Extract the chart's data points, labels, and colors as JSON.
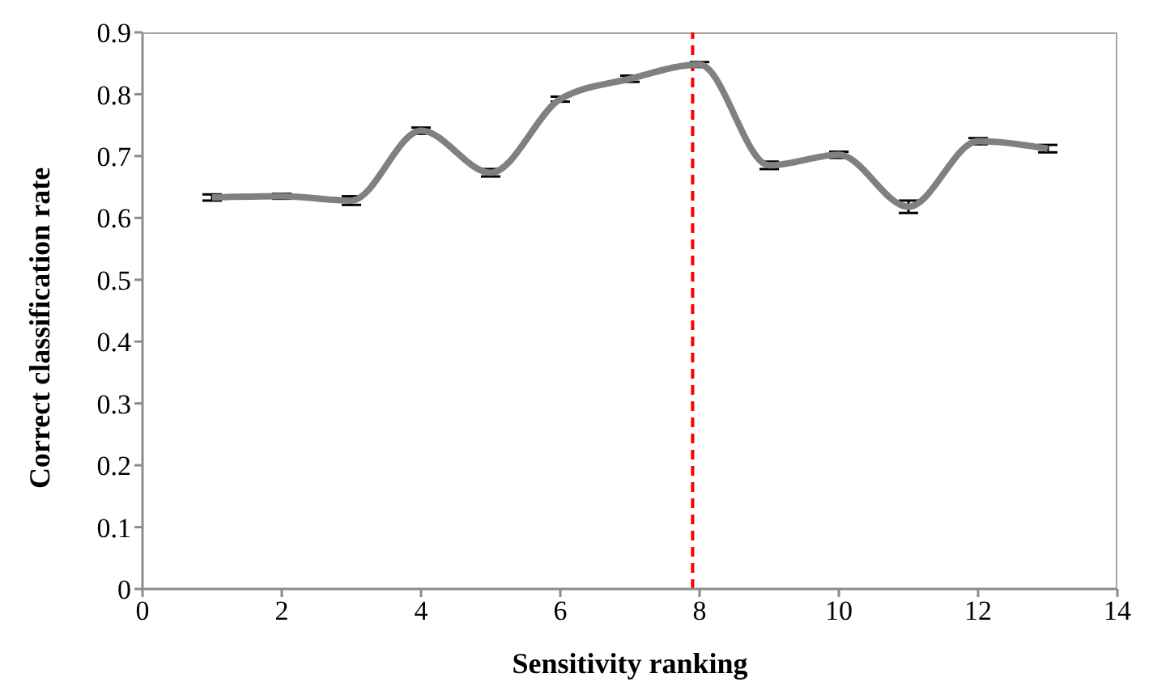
{
  "chart_data": {
    "type": "line",
    "xlabel": "Sensitivity ranking",
    "ylabel": "Correct classification rate",
    "x": [
      1,
      2,
      3,
      4,
      5,
      6,
      7,
      8,
      9,
      10,
      11,
      12,
      13
    ],
    "series": [
      {
        "color": "#808080",
        "values": [
          0.633,
          0.635,
          0.628,
          0.741,
          0.673,
          0.792,
          0.825,
          0.848,
          0.685,
          0.702,
          0.618,
          0.724,
          0.712
        ],
        "errors": [
          0.005,
          0.004,
          0.007,
          0.005,
          0.006,
          0.004,
          0.005,
          0.004,
          0.006,
          0.005,
          0.01,
          0.005,
          0.006
        ]
      }
    ],
    "xlim": [
      0,
      14
    ],
    "xticks": [
      0,
      2,
      4,
      6,
      8,
      10,
      12,
      14
    ],
    "ylim": [
      0,
      0.9
    ],
    "yticks": [
      0,
      0.1,
      0.2,
      0.3,
      0.4,
      0.5,
      0.6,
      0.7,
      0.8,
      0.9
    ],
    "ref_lines": [
      {
        "axis": "x",
        "value": 7.9,
        "color": "#ff0000",
        "line_style": "dashed"
      }
    ],
    "grid": false,
    "legend": false,
    "marker": "none",
    "line_style": "solid"
  }
}
